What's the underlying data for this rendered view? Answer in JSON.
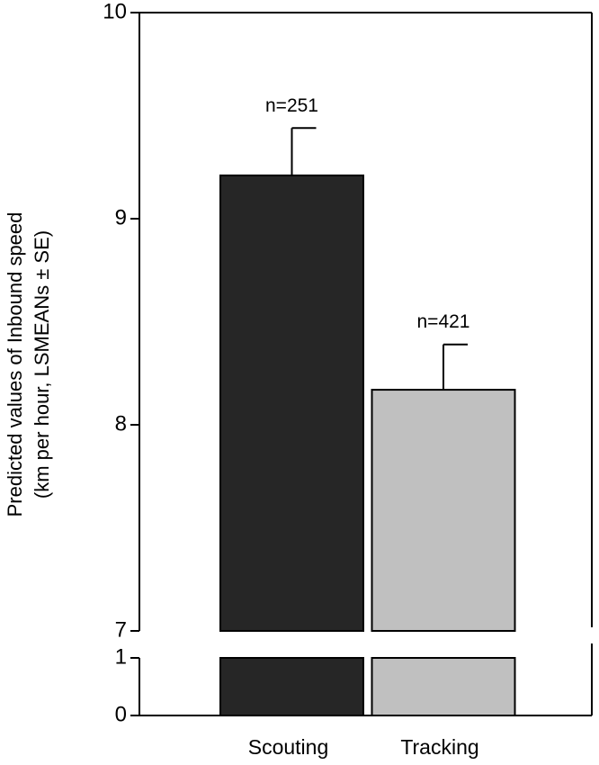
{
  "chart_data": {
    "type": "bar",
    "ylabel": [
      "Predicted values of Inbound speed",
      "(km per hour, LSMEANs ± SE)"
    ],
    "categories": [
      "Scouting",
      "Tracking"
    ],
    "values": [
      9.21,
      8.17
    ],
    "errors": [
      0.23,
      0.22
    ],
    "annotations": [
      "n=251",
      "n=421"
    ],
    "colors": [
      "#262626",
      "#c0c0c0"
    ],
    "ylim": [
      7,
      10
    ],
    "yticks": [
      7,
      8,
      9,
      10
    ],
    "axis_break": {
      "ylim": [
        0,
        1
      ],
      "yticks": [
        0,
        1
      ]
    }
  }
}
